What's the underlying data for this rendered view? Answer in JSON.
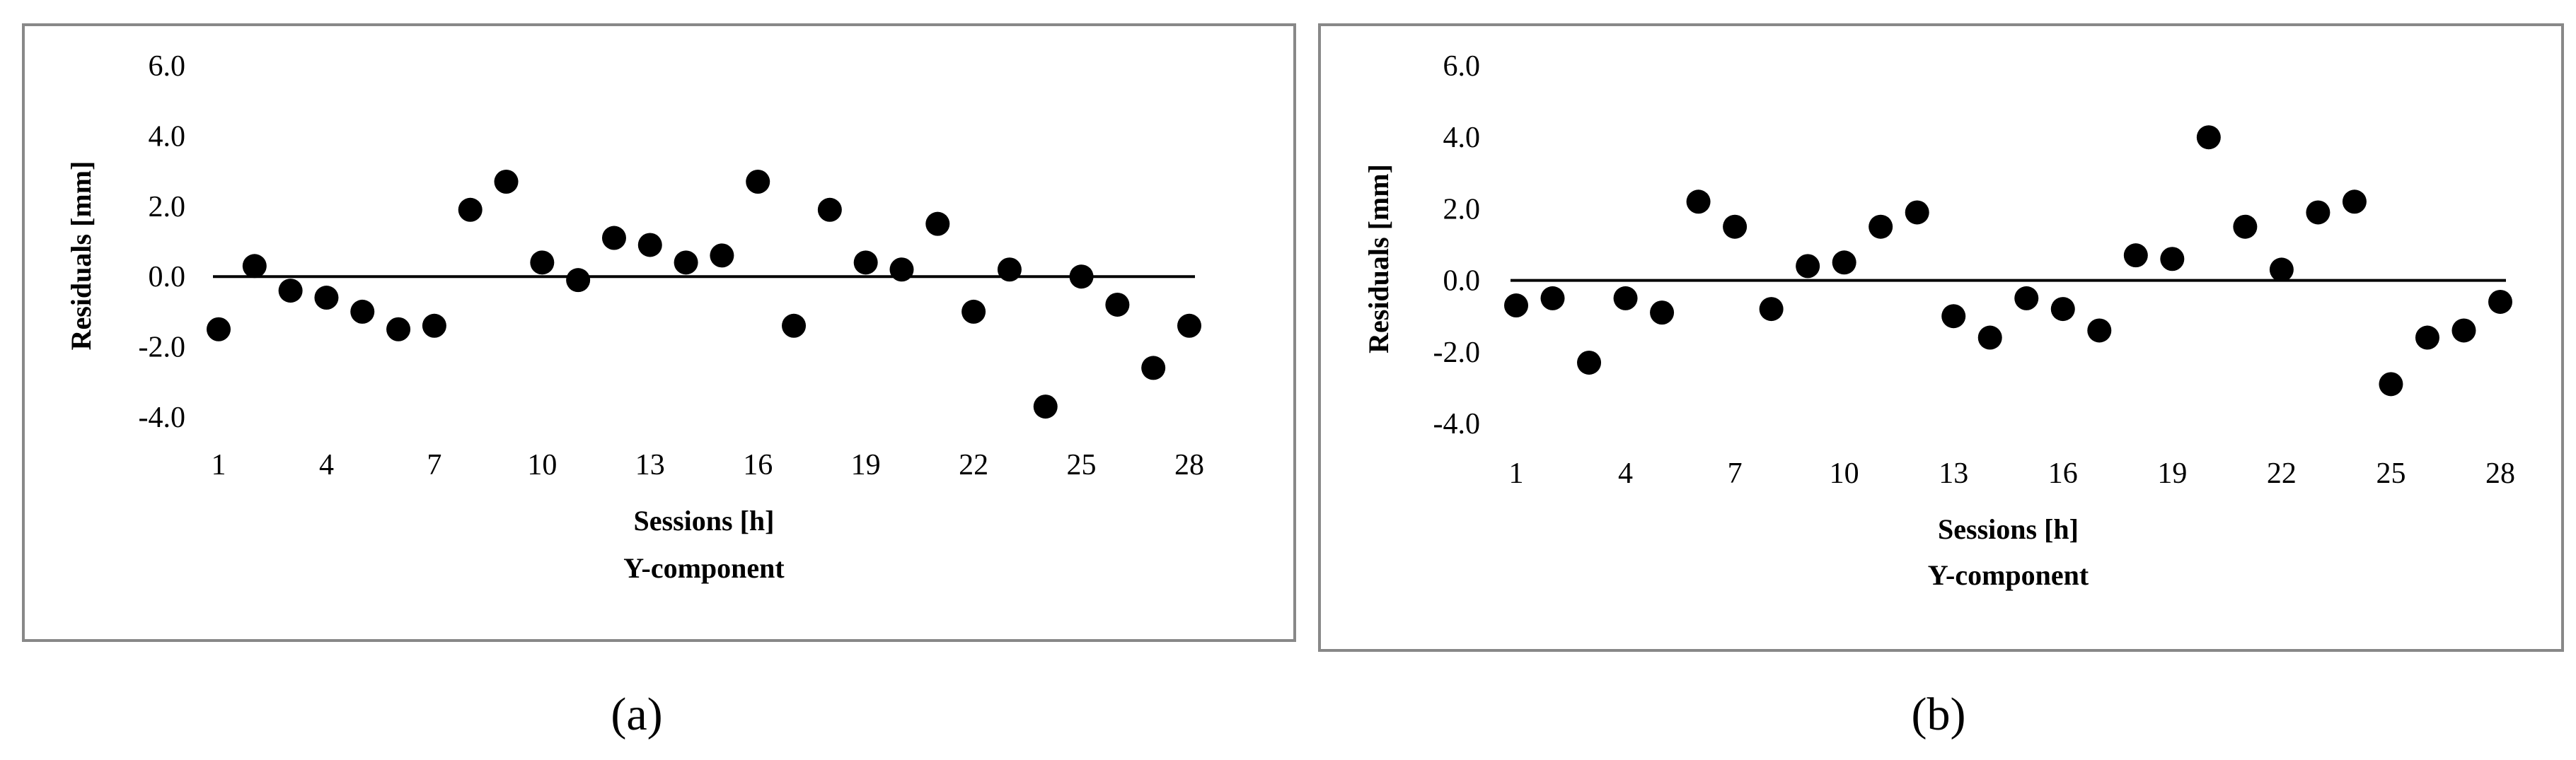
{
  "chart_data": [
    {
      "type": "scatter",
      "panel_label": "(a)",
      "x_label": "Sessions [h]",
      "subtitle": "Y-component",
      "y_label": "Residuals [mm]",
      "x": [
        1,
        2,
        3,
        4,
        5,
        6,
        7,
        8,
        9,
        10,
        11,
        12,
        13,
        14,
        15,
        16,
        17,
        18,
        19,
        20,
        21,
        22,
        23,
        24,
        25,
        26,
        27,
        28
      ],
      "series": [
        {
          "color": "#000000",
          "values": [
            -1.5,
            0.3,
            -0.4,
            -0.6,
            -1.0,
            -1.5,
            -1.4,
            1.9,
            2.7,
            0.4,
            -0.1,
            1.1,
            0.9,
            0.4,
            0.6,
            2.7,
            -1.4,
            1.9,
            0.4,
            0.2,
            1.5,
            -1.0,
            0.2,
            -3.7,
            0.0,
            -0.8,
            -2.6,
            -1.4
          ]
        }
      ],
      "xlim": [
        1,
        28
      ],
      "xticks": [
        1,
        4,
        7,
        10,
        13,
        16,
        19,
        22,
        25,
        28
      ],
      "ylim": [
        -4,
        6
      ],
      "yticks": [
        {
          "value": -4,
          "label": "-4.0"
        },
        {
          "value": -2,
          "label": "-2.0"
        },
        {
          "value": 0,
          "label": "0.0"
        },
        {
          "value": 2,
          "label": "2.0"
        },
        {
          "value": 4,
          "label": "4.0"
        },
        {
          "value": 6,
          "label": "6.0"
        }
      ]
    },
    {
      "type": "scatter",
      "panel_label": "(b)",
      "x_label": "Sessions [h]",
      "subtitle": "Y-component",
      "y_label": "Residuals [mm]",
      "x": [
        1,
        2,
        3,
        4,
        5,
        6,
        7,
        8,
        9,
        10,
        11,
        12,
        13,
        14,
        15,
        16,
        17,
        18,
        19,
        20,
        21,
        22,
        23,
        24,
        25,
        26,
        27,
        28
      ],
      "series": [
        {
          "color": "#000000",
          "values": [
            -0.7,
            -0.5,
            -2.3,
            -0.5,
            -0.9,
            2.2,
            1.5,
            -0.8,
            0.4,
            0.5,
            1.5,
            1.9,
            -1.0,
            -1.6,
            -0.5,
            -0.8,
            -1.4,
            0.7,
            0.6,
            4.0,
            1.5,
            0.3,
            1.9,
            2.2,
            -2.9,
            -1.6,
            -1.4,
            -0.6
          ]
        }
      ],
      "xlim": [
        1,
        28
      ],
      "xticks": [
        1,
        4,
        7,
        10,
        13,
        16,
        19,
        22,
        25,
        28
      ],
      "ylim": [
        -4,
        6
      ],
      "yticks": [
        {
          "value": -4,
          "label": "-4.0"
        },
        {
          "value": -2,
          "label": "-2.0"
        },
        {
          "value": 0,
          "label": "0.0"
        },
        {
          "value": 2,
          "label": "2.0"
        },
        {
          "value": 4,
          "label": "4.0"
        },
        {
          "value": 6,
          "label": "6.0"
        }
      ]
    }
  ]
}
